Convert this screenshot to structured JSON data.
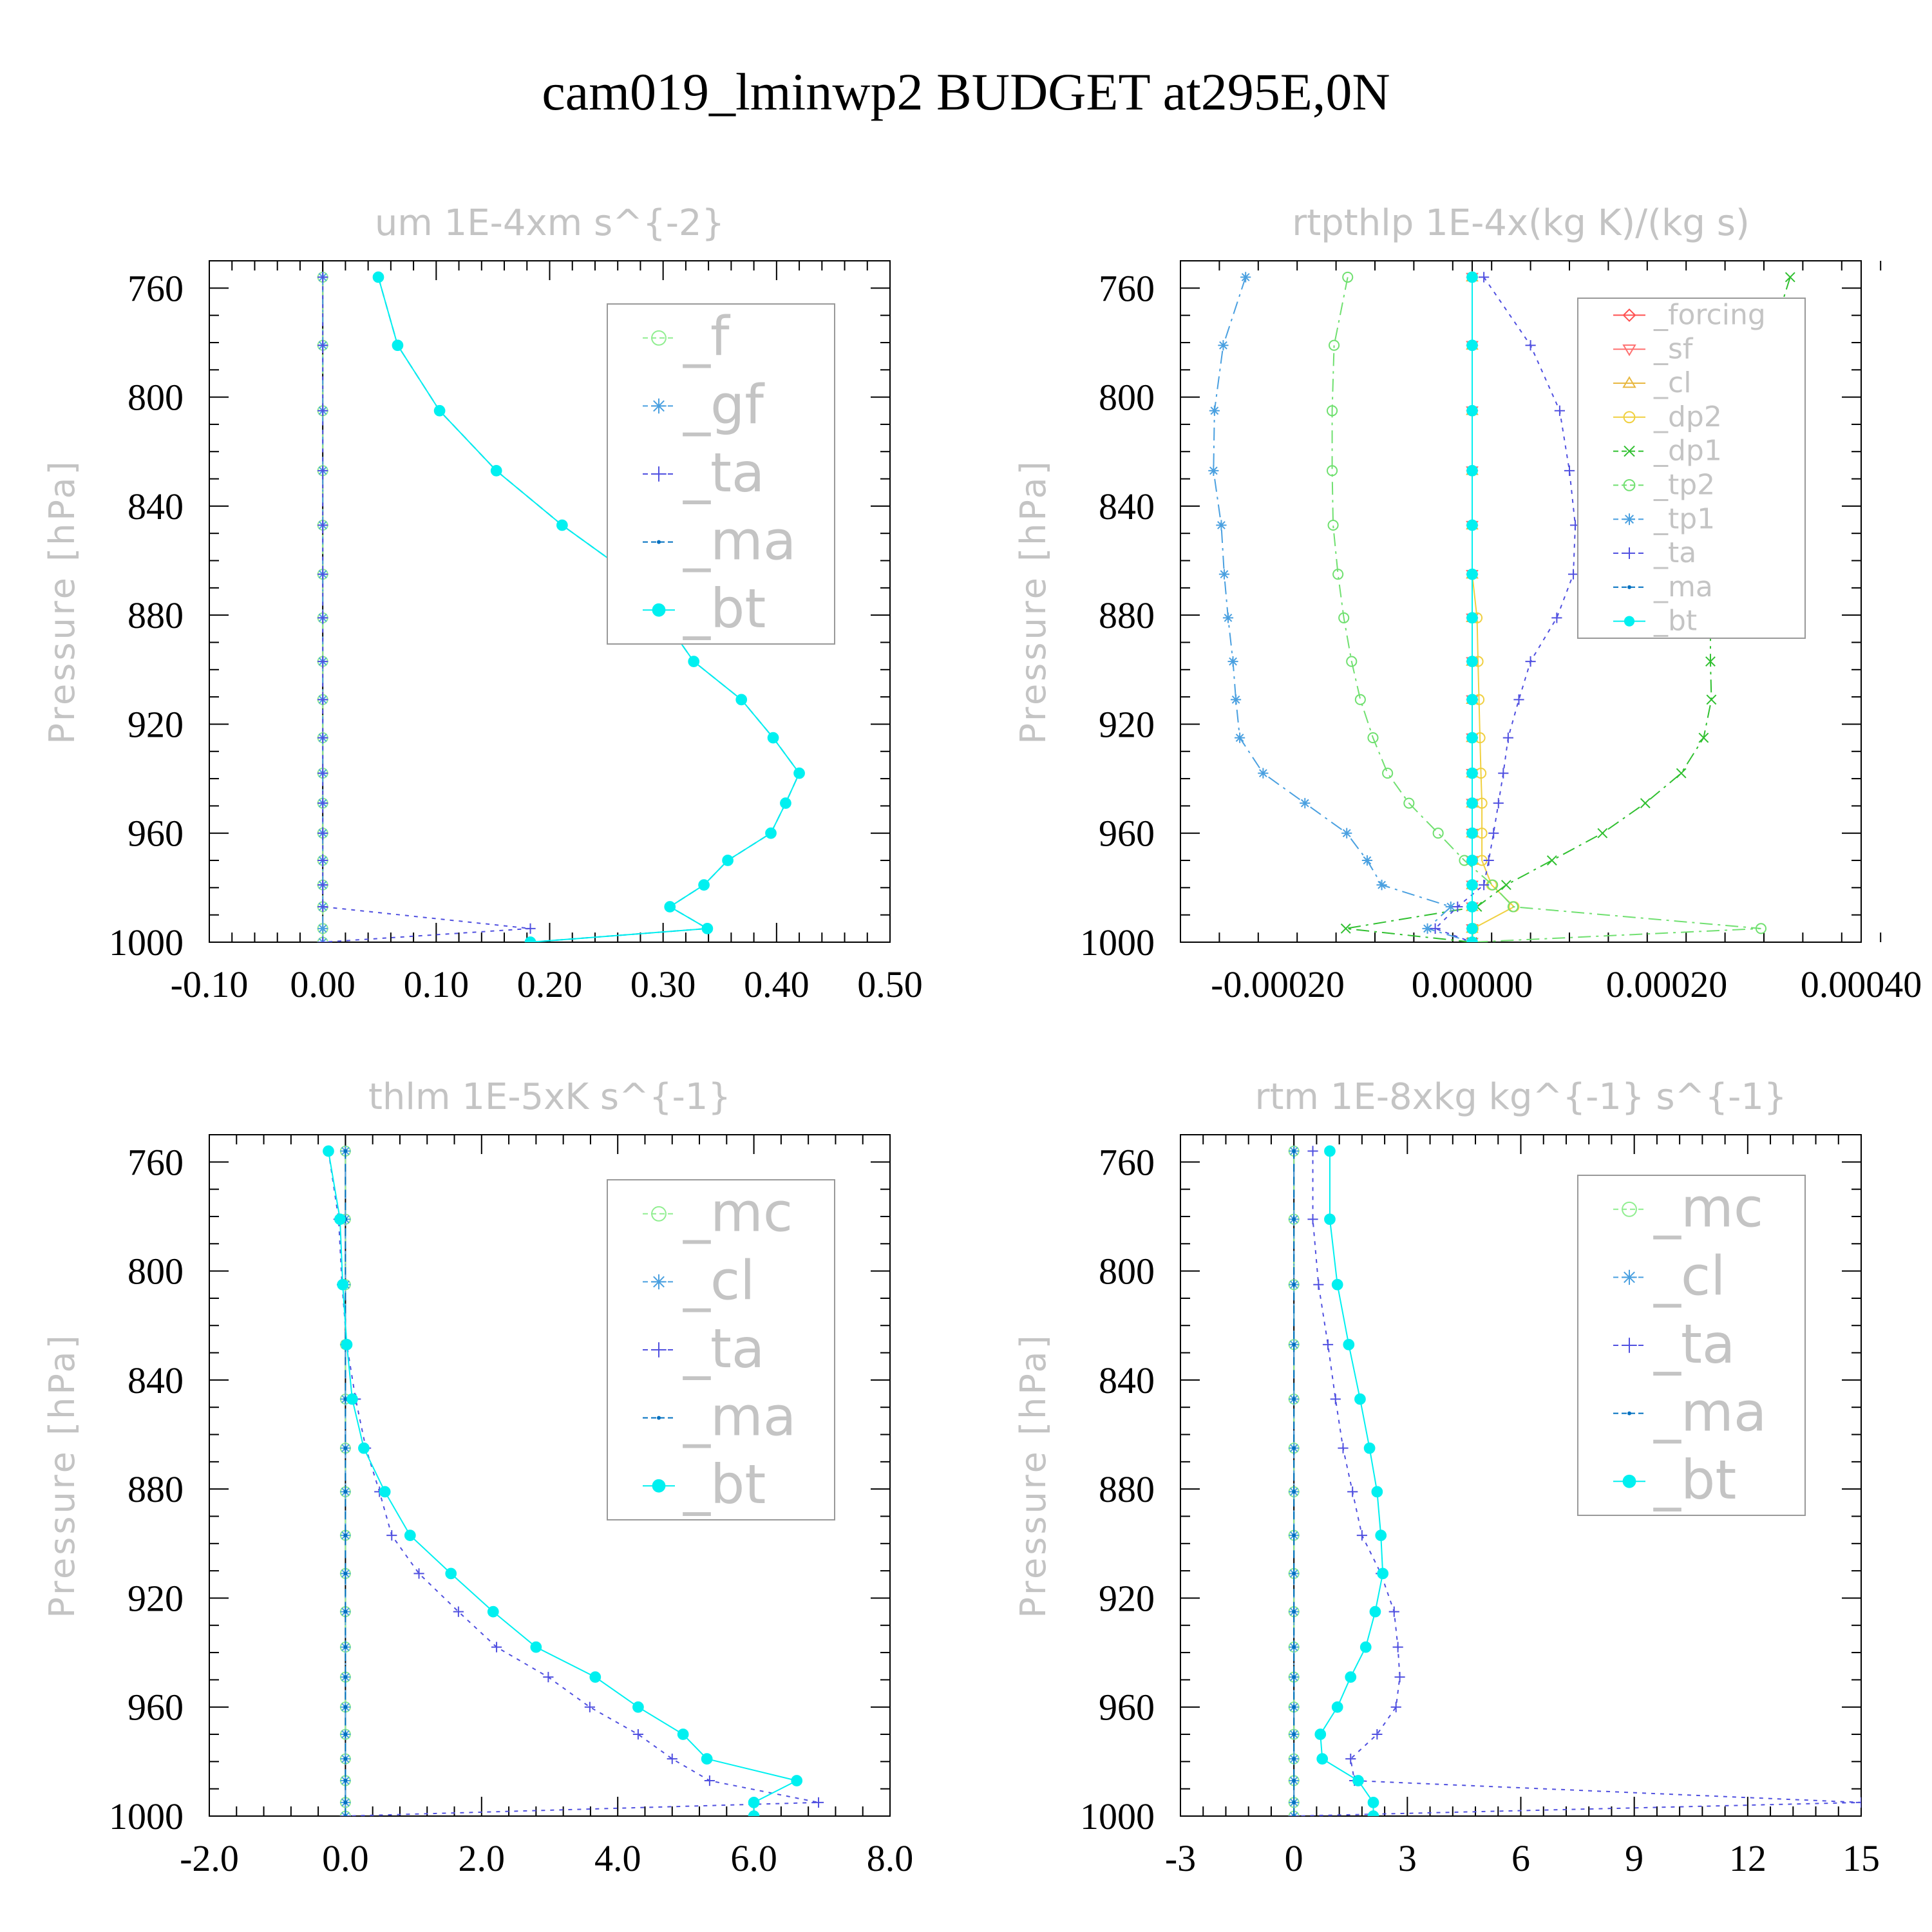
{
  "title": "cam019_lminwp2  BUDGET at295E,0N",
  "chart_data": [
    {
      "id": "um",
      "type": "line",
      "title": "um   1E-4xm s^{-2}",
      "ylabel": "Pressure [hPa]",
      "xlim": [
        -0.1,
        0.5
      ],
      "ylim": [
        1000,
        750
      ],
      "xticks": [
        -0.1,
        0.0,
        0.1,
        0.2,
        0.3,
        0.4,
        0.5
      ],
      "xtick_labels": [
        "-0.10",
        "0.00",
        "0.10",
        "0.20",
        "0.30",
        "0.40",
        "0.50"
      ],
      "yticks": [
        760,
        800,
        840,
        880,
        920,
        960,
        1000
      ],
      "ytick_labels": [
        "760",
        "800",
        "840",
        "880",
        "920",
        "960",
        "1000"
      ],
      "p": [
        756,
        781,
        805,
        827,
        847,
        865,
        881,
        897,
        911,
        925,
        938,
        949,
        960,
        970,
        979,
        987,
        995,
        1000
      ],
      "series": [
        {
          "name": "_f",
          "color": "#90ee90",
          "marker": "circle",
          "dash": "30,10",
          "values": [
            0,
            0,
            0,
            0,
            0,
            0,
            0,
            0,
            0,
            0,
            0,
            0,
            0,
            0,
            0,
            0,
            0,
            0
          ]
        },
        {
          "name": "_gf",
          "color": "#4aa0e0",
          "marker": "star",
          "dash": "12,8,3,8",
          "values": [
            0,
            0,
            0,
            0,
            0,
            0,
            0,
            0,
            0,
            0,
            0,
            0,
            0,
            0,
            0,
            0,
            0,
            0
          ]
        },
        {
          "name": "_ta",
          "color": "#5050e0",
          "marker": "plus",
          "dash": "6,8",
          "values": [
            0,
            0,
            0,
            0,
            0,
            0,
            0,
            0,
            0,
            0,
            0,
            0,
            0,
            0,
            0,
            0,
            0.183,
            0
          ]
        },
        {
          "name": "_ma",
          "color": "#0070c0",
          "marker": "dot",
          "dash": "12,8",
          "values": [
            0.049,
            0.066,
            0.103,
            0.153,
            0.211,
            0.271,
            0.3,
            0.327,
            0.369,
            0.397,
            0.42,
            0.408,
            0.395,
            0.357,
            0.336,
            0.306,
            0.339,
            0.183
          ]
        },
        {
          "name": "_bt",
          "color": "#00f0f0",
          "marker": "bigdot",
          "dash": "",
          "width": 2,
          "values": [
            0.049,
            0.066,
            0.103,
            0.153,
            0.211,
            0.271,
            0.3,
            0.327,
            0.369,
            0.397,
            0.42,
            0.408,
            0.395,
            0.357,
            0.336,
            0.306,
            0.339,
            0.183
          ]
        }
      ]
    },
    {
      "id": "rtpthlp",
      "type": "line",
      "title": "rtpthlp   1E-4x(kg K)/(kg s)",
      "ylabel": "Pressure [hPa]",
      "xlim": [
        -0.0003,
        0.0004
      ],
      "ylim": [
        1000,
        750
      ],
      "xticks": [
        -0.0002,
        0.0,
        0.0002,
        0.0004
      ],
      "xtick_labels": [
        "-0.00020",
        "0.00000",
        "0.00020",
        "0.00040"
      ],
      "yticks": [
        760,
        800,
        840,
        880,
        920,
        960,
        1000
      ],
      "ytick_labels": [
        "760",
        "800",
        "840",
        "880",
        "920",
        "960",
        "1000"
      ],
      "p": [
        756,
        781,
        805,
        827,
        847,
        865,
        881,
        897,
        911,
        925,
        938,
        949,
        960,
        970,
        979,
        987,
        995,
        1000
      ],
      "series": [
        {
          "name": "_forcing",
          "color": "#ff5050",
          "marker": "diamond",
          "dash": "",
          "values": [
            0,
            0,
            0,
            0,
            0,
            0,
            0,
            0,
            0,
            0,
            0,
            0,
            0,
            0,
            0,
            0,
            0,
            0
          ]
        },
        {
          "name": "_sf",
          "color": "#ff7070",
          "marker": "tridown",
          "dash": "",
          "values": [
            0,
            0,
            0,
            0,
            0,
            0,
            0,
            0,
            0,
            0,
            0,
            0,
            0,
            0,
            0,
            0,
            0,
            0
          ]
        },
        {
          "name": "_cl",
          "color": "#e8b840",
          "marker": "triup",
          "dash": "",
          "values": [
            0,
            0,
            0,
            0,
            0,
            0,
            0,
            0,
            0,
            0,
            0,
            0,
            0,
            0,
            0,
            0,
            0,
            0
          ]
        },
        {
          "name": "_dp2",
          "color": "#f0d040",
          "marker": "circle",
          "dash": "",
          "values": [
            0,
            0,
            0,
            0,
            0,
            0,
            5e-06,
            6e-06,
            7e-06,
            8e-06,
            9e-06,
            1e-05,
            1e-05,
            1e-05,
            2e-05,
            4.3e-05,
            1e-06,
            0
          ]
        },
        {
          "name": "_dp1",
          "color": "#30c030",
          "marker": "cross",
          "dash": "20,8,4,8",
          "values": [
            0.000327,
            0.000305,
            0.000285,
            0.000272,
            0.000263,
            0.000253,
            0.000245,
            0.000245,
            0.000246,
            0.000238,
            0.000215,
            0.000178,
            0.000134,
            8.2e-05,
            3.5e-05,
            5e-06,
            -0.00013,
            0
          ]
        },
        {
          "name": "_tp2",
          "color": "#70e070",
          "marker": "circle",
          "dash": "20,8,4,8",
          "values": [
            -0.000128,
            -0.000142,
            -0.000144,
            -0.000144,
            -0.000143,
            -0.000138,
            -0.000132,
            -0.000124,
            -0.000115,
            -0.000102,
            -8.7e-05,
            -6.5e-05,
            -3.5e-05,
            -8e-06,
            2.1e-05,
            4.2e-05,
            0.000297,
            0
          ]
        },
        {
          "name": "_tp1",
          "color": "#4aa0e0",
          "marker": "star",
          "dash": "20,8,4,8",
          "values": [
            -0.000233,
            -0.000256,
            -0.000265,
            -0.000266,
            -0.000258,
            -0.000255,
            -0.000251,
            -0.000246,
            -0.000243,
            -0.000239,
            -0.000215,
            -0.000172,
            -0.000129,
            -0.000108,
            -9.3e-05,
            -2.2e-05,
            -4.6e-05,
            0
          ]
        },
        {
          "name": "_ta",
          "color": "#5050e0",
          "marker": "plus",
          "dash": "6,8",
          "values": [
            1.2e-05,
            6e-05,
            9e-05,
            0.0001,
            0.000106,
            0.000104,
            8.7e-05,
            6e-05,
            4.8e-05,
            3.7e-05,
            3.2e-05,
            2.7e-05,
            2.2e-05,
            1.7e-05,
            1.2e-05,
            -1.5e-05,
            -3.8e-05,
            0
          ]
        },
        {
          "name": "_ma",
          "color": "#0070c0",
          "marker": "dot",
          "dash": "12,8",
          "values": [
            0,
            0,
            0,
            0,
            0,
            0,
            0,
            0,
            0,
            0,
            0,
            0,
            0,
            0,
            0,
            0,
            0,
            0
          ]
        },
        {
          "name": "_bt",
          "color": "#00f0f0",
          "marker": "bigdot",
          "dash": "",
          "values": [
            0,
            0,
            0,
            0,
            0,
            0,
            0,
            0,
            0,
            0,
            0,
            0,
            0,
            0,
            0,
            0,
            0,
            0
          ]
        }
      ]
    },
    {
      "id": "thlm",
      "type": "line",
      "title": "thlm   1E-5xK s^{-1}",
      "ylabel": "Pressure [hPa]",
      "xlim": [
        -2.0,
        8.0
      ],
      "ylim": [
        1000,
        750
      ],
      "xticks": [
        -2.0,
        0.0,
        2.0,
        4.0,
        6.0,
        8.0
      ],
      "xtick_labels": [
        "-2.0",
        "0.0",
        "2.0",
        "4.0",
        "6.0",
        "8.0"
      ],
      "yticks": [
        760,
        800,
        840,
        880,
        920,
        960,
        1000
      ],
      "ytick_labels": [
        "760",
        "800",
        "840",
        "880",
        "920",
        "960",
        "1000"
      ],
      "p": [
        756,
        781,
        805,
        827,
        847,
        865,
        881,
        897,
        911,
        925,
        938,
        949,
        960,
        970,
        979,
        987,
        995,
        1000
      ],
      "series": [
        {
          "name": "_mc",
          "color": "#90ee90",
          "marker": "circle",
          "dash": "30,10",
          "values": [
            0,
            0,
            0,
            0,
            0,
            0,
            0,
            0,
            0,
            0,
            0,
            0,
            0,
            0,
            0,
            0,
            0,
            0
          ]
        },
        {
          "name": "_cl",
          "color": "#4aa0e0",
          "marker": "star",
          "dash": "12,8,3,8",
          "values": [
            0,
            0,
            0,
            0,
            0,
            0,
            0,
            0,
            0,
            0,
            0,
            0,
            0,
            0,
            0,
            0,
            0,
            0
          ]
        },
        {
          "name": "_ta",
          "color": "#5050e0",
          "marker": "plus",
          "dash": "6,8",
          "values": [
            -0.25,
            -0.1,
            -0.05,
            0.02,
            0.15,
            0.3,
            0.5,
            0.68,
            1.08,
            1.66,
            2.22,
            2.98,
            3.59,
            4.3,
            4.8,
            5.35,
            6.95,
            0
          ]
        },
        {
          "name": "_ma",
          "color": "#0070c0",
          "marker": "dot",
          "dash": "12,8",
          "values": [
            0,
            0,
            0,
            0,
            0,
            0,
            0,
            0,
            0,
            0,
            0,
            0,
            0,
            0,
            0,
            0,
            0,
            0
          ]
        },
        {
          "name": "_bt",
          "color": "#00f0f0",
          "marker": "bigdot",
          "dash": "",
          "width": 2,
          "values": [
            -0.25,
            -0.08,
            -0.04,
            0.02,
            0.1,
            0.27,
            0.58,
            0.95,
            1.55,
            2.17,
            2.8,
            3.67,
            4.3,
            4.96,
            5.31,
            6.63,
            6.0,
            6.0
          ]
        }
      ]
    },
    {
      "id": "rtm",
      "type": "line",
      "title": "rtm   1E-8xkg kg^{-1} s^{-1}",
      "ylabel": "Pressure [hPa]",
      "xlim": [
        -3,
        15
      ],
      "ylim": [
        1000,
        750
      ],
      "xticks": [
        -3,
        0,
        3,
        6,
        9,
        12,
        15
      ],
      "xtick_labels": [
        "-3",
        "0",
        "3",
        "6",
        "9",
        "12",
        "15"
      ],
      "yticks": [
        760,
        800,
        840,
        880,
        920,
        960,
        1000
      ],
      "ytick_labels": [
        "760",
        "800",
        "840",
        "880",
        "920",
        "960",
        "1000"
      ],
      "p": [
        756,
        781,
        805,
        827,
        847,
        865,
        881,
        897,
        911,
        925,
        938,
        949,
        960,
        970,
        979,
        987,
        995,
        1000
      ],
      "series": [
        {
          "name": "_mc",
          "color": "#90ee90",
          "marker": "circle",
          "dash": "30,10",
          "values": [
            0,
            0,
            0,
            0,
            0,
            0,
            0,
            0,
            0,
            0,
            0,
            0,
            0,
            0,
            0,
            0,
            0,
            0
          ]
        },
        {
          "name": "_cl",
          "color": "#4aa0e0",
          "marker": "star",
          "dash": "12,8,3,8",
          "values": [
            0,
            0,
            0,
            0,
            0,
            0,
            0,
            0,
            0,
            0,
            0,
            0,
            0,
            0,
            0,
            0,
            0,
            0
          ]
        },
        {
          "name": "_ta",
          "color": "#5050e0",
          "marker": "plus",
          "dash": "6,8",
          "values": [
            0.5,
            0.5,
            0.65,
            0.9,
            1.1,
            1.3,
            1.55,
            1.8,
            2.3,
            2.65,
            2.75,
            2.8,
            2.7,
            2.2,
            1.5,
            1.6,
            15,
            0
          ]
        },
        {
          "name": "_ma",
          "color": "#0070c0",
          "marker": "dot",
          "dash": "12,8",
          "values": [
            0,
            0,
            0,
            0,
            0,
            0,
            0,
            0,
            0,
            0,
            0,
            0,
            0,
            0,
            0,
            0,
            0,
            0
          ]
        },
        {
          "name": "_bt",
          "color": "#00f0f0",
          "marker": "bigdot",
          "dash": "",
          "width": 2,
          "values": [
            0.95,
            0.95,
            1.15,
            1.45,
            1.75,
            2.0,
            2.2,
            2.3,
            2.35,
            2.15,
            1.9,
            1.5,
            1.15,
            0.7,
            0.75,
            1.7,
            2.1,
            2.1
          ]
        }
      ]
    }
  ]
}
